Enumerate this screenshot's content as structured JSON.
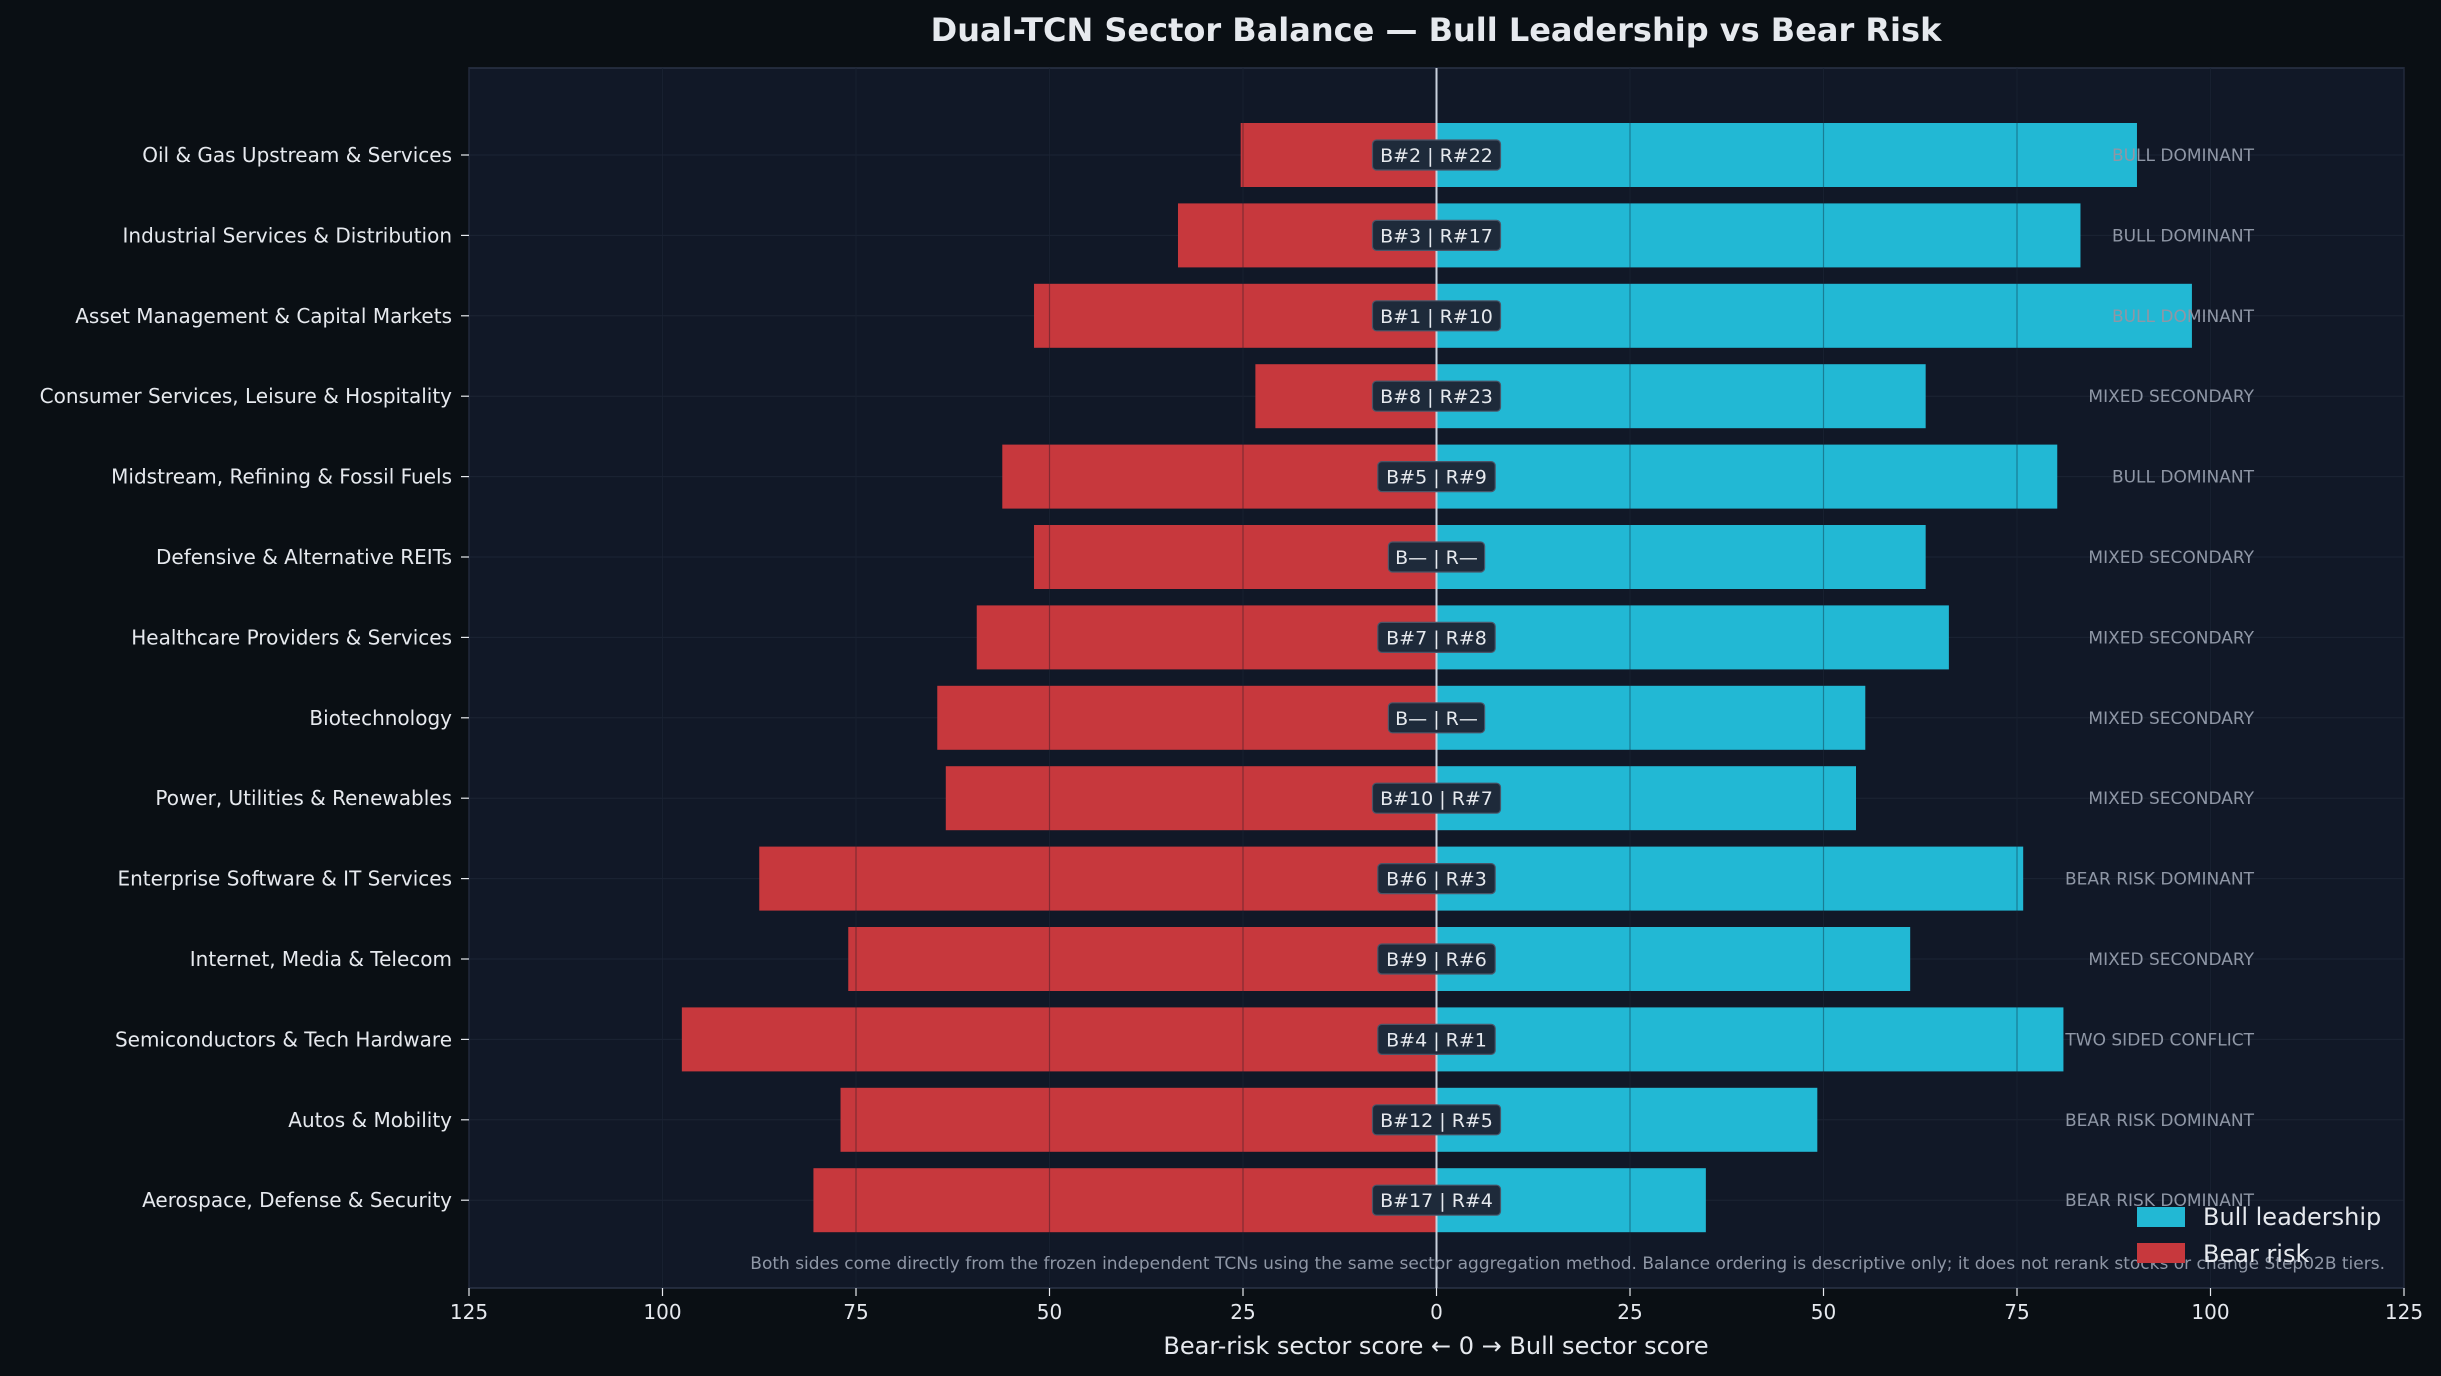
{
  "colors": {
    "page_bg": "#0a0f14",
    "plot_bg": "#111827",
    "bull": "#22b8d4",
    "bear": "#c7383d",
    "text": "#e6e9ee",
    "muted": "#8f97a6",
    "grid": "#2b3445",
    "badge_bg": "#1e2a3a",
    "badge_border": "#4a5568"
  },
  "chart_data": {
    "type": "bar",
    "orientation": "diverging-horizontal",
    "title": "Dual-TCN Sector Balance — Bull Leadership vs Bear Risk",
    "xlabel": "Bear-risk sector score  ←  0  →  Bull sector score",
    "xlim": [
      -125,
      125
    ],
    "x_ticks": [
      -125,
      -100,
      -75,
      -50,
      -25,
      0,
      25,
      50,
      75,
      100,
      125
    ],
    "x_tick_labels": [
      "125",
      "100",
      "75",
      "50",
      "25",
      "0",
      "25",
      "50",
      "75",
      "100",
      "125"
    ],
    "grid": true,
    "legend_position": "bottom-right",
    "categories": [
      "Oil & Gas Upstream & Services",
      "Industrial Services & Distribution",
      "Asset Management & Capital Markets",
      "Consumer Services, Leisure & Hospitality",
      "Midstream, Refining & Fossil Fuels",
      "Defensive & Alternative REITs",
      "Healthcare Providers & Services",
      "Biotechnology",
      "Power, Utilities & Renewables",
      "Enterprise Software & IT Services",
      "Internet, Media & Telecom",
      "Semiconductors & Tech Hardware",
      "Autos & Mobility",
      "Aerospace, Defense & Security"
    ],
    "series": [
      {
        "name": "Bull leadership",
        "color": "#22b8d4",
        "values": [
          90.5,
          83.2,
          97.6,
          63.2,
          80.2,
          63.2,
          66.2,
          55.4,
          54.2,
          75.8,
          61.2,
          81.0,
          49.2,
          34.8
        ]
      },
      {
        "name": "Bear risk",
        "color": "#c7383d",
        "values": [
          25.3,
          33.4,
          52.0,
          23.4,
          56.1,
          52.0,
          59.4,
          64.5,
          63.4,
          87.5,
          76.0,
          97.5,
          77.0,
          80.5
        ]
      }
    ],
    "rank_labels": [
      "B#2 | R#22",
      "B#3 | R#17",
      "B#1 | R#10",
      "B#8 | R#23",
      "B#5 | R#9",
      "B— | R—",
      "B#7 | R#8",
      "B— | R—",
      "B#10 | R#7",
      "B#6 | R#3",
      "B#9 | R#6",
      "B#4 | R#1",
      "B#12 | R#5",
      "B#17 | R#4"
    ],
    "balance_labels": [
      "BULL DOMINANT",
      "BULL DOMINANT",
      "BULL DOMINANT",
      "MIXED SECONDARY",
      "BULL DOMINANT",
      "MIXED SECONDARY",
      "MIXED SECONDARY",
      "MIXED SECONDARY",
      "MIXED SECONDARY",
      "BEAR RISK DOMINANT",
      "MIXED SECONDARY",
      "TWO SIDED CONFLICT",
      "BEAR RISK DOMINANT",
      "BEAR RISK DOMINANT"
    ],
    "footnote": "Both sides come directly from the frozen independent TCNs using the same sector aggregation method. Balance ordering is descriptive only; it does not rerank stocks or change Step02B tiers."
  }
}
